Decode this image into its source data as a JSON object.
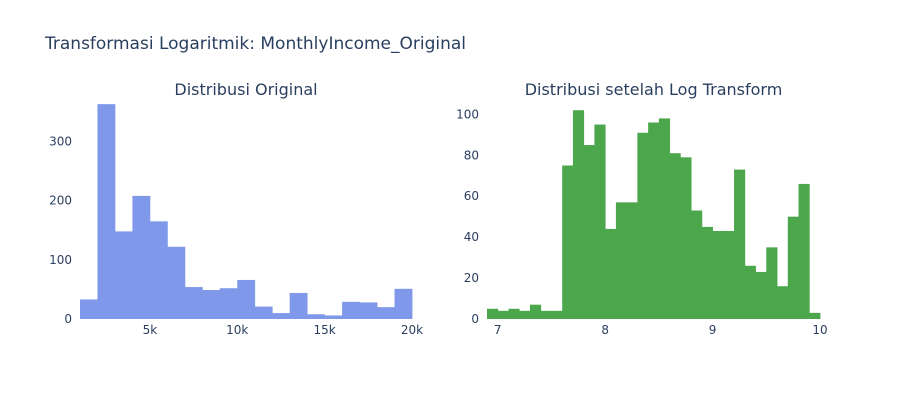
{
  "title": "Transformasi Logaritmik: MonthlyIncome_Original",
  "chart_data": [
    {
      "type": "bar",
      "title": "Distribusi Original",
      "color": "#7f98ea",
      "x_range": [
        1000,
        20000
      ],
      "y_range": [
        0,
        370
      ],
      "x_ticks": [
        {
          "v": 5000,
          "label": "5k"
        },
        {
          "v": 10000,
          "label": "10k"
        },
        {
          "v": 15000,
          "label": "15k"
        },
        {
          "v": 20000,
          "label": "20k"
        }
      ],
      "y_ticks": [
        {
          "v": 0,
          "label": "0"
        },
        {
          "v": 100,
          "label": "100"
        },
        {
          "v": 200,
          "label": "200"
        },
        {
          "v": 300,
          "label": "300"
        }
      ],
      "bin_start": 1000,
      "bin_width": 1000,
      "values": [
        33,
        363,
        148,
        208,
        165,
        122,
        54,
        49,
        52,
        66,
        21,
        10,
        44,
        8,
        6,
        29,
        28,
        20,
        51
      ]
    },
    {
      "type": "bar",
      "title": "Distribusi setelah Log Transform",
      "color": "#4ca64c",
      "x_range": [
        6.9,
        10.0
      ],
      "y_range": [
        0,
        107
      ],
      "x_ticks": [
        {
          "v": 7,
          "label": "7"
        },
        {
          "v": 8,
          "label": "8"
        },
        {
          "v": 9,
          "label": "9"
        },
        {
          "v": 10,
          "label": "10"
        }
      ],
      "y_ticks": [
        {
          "v": 0,
          "label": "0"
        },
        {
          "v": 20,
          "label": "20"
        },
        {
          "v": 40,
          "label": "40"
        },
        {
          "v": 60,
          "label": "60"
        },
        {
          "v": 80,
          "label": "80"
        },
        {
          "v": 100,
          "label": "100"
        }
      ],
      "bin_start": 6.9,
      "bin_width": 0.1,
      "values": [
        5,
        4,
        5,
        4,
        7,
        4,
        4,
        75,
        102,
        85,
        95,
        44,
        57,
        57,
        91,
        96,
        98,
        81,
        79,
        53,
        45,
        43,
        43,
        73,
        26,
        23,
        35,
        16,
        50,
        66,
        3
      ]
    }
  ]
}
